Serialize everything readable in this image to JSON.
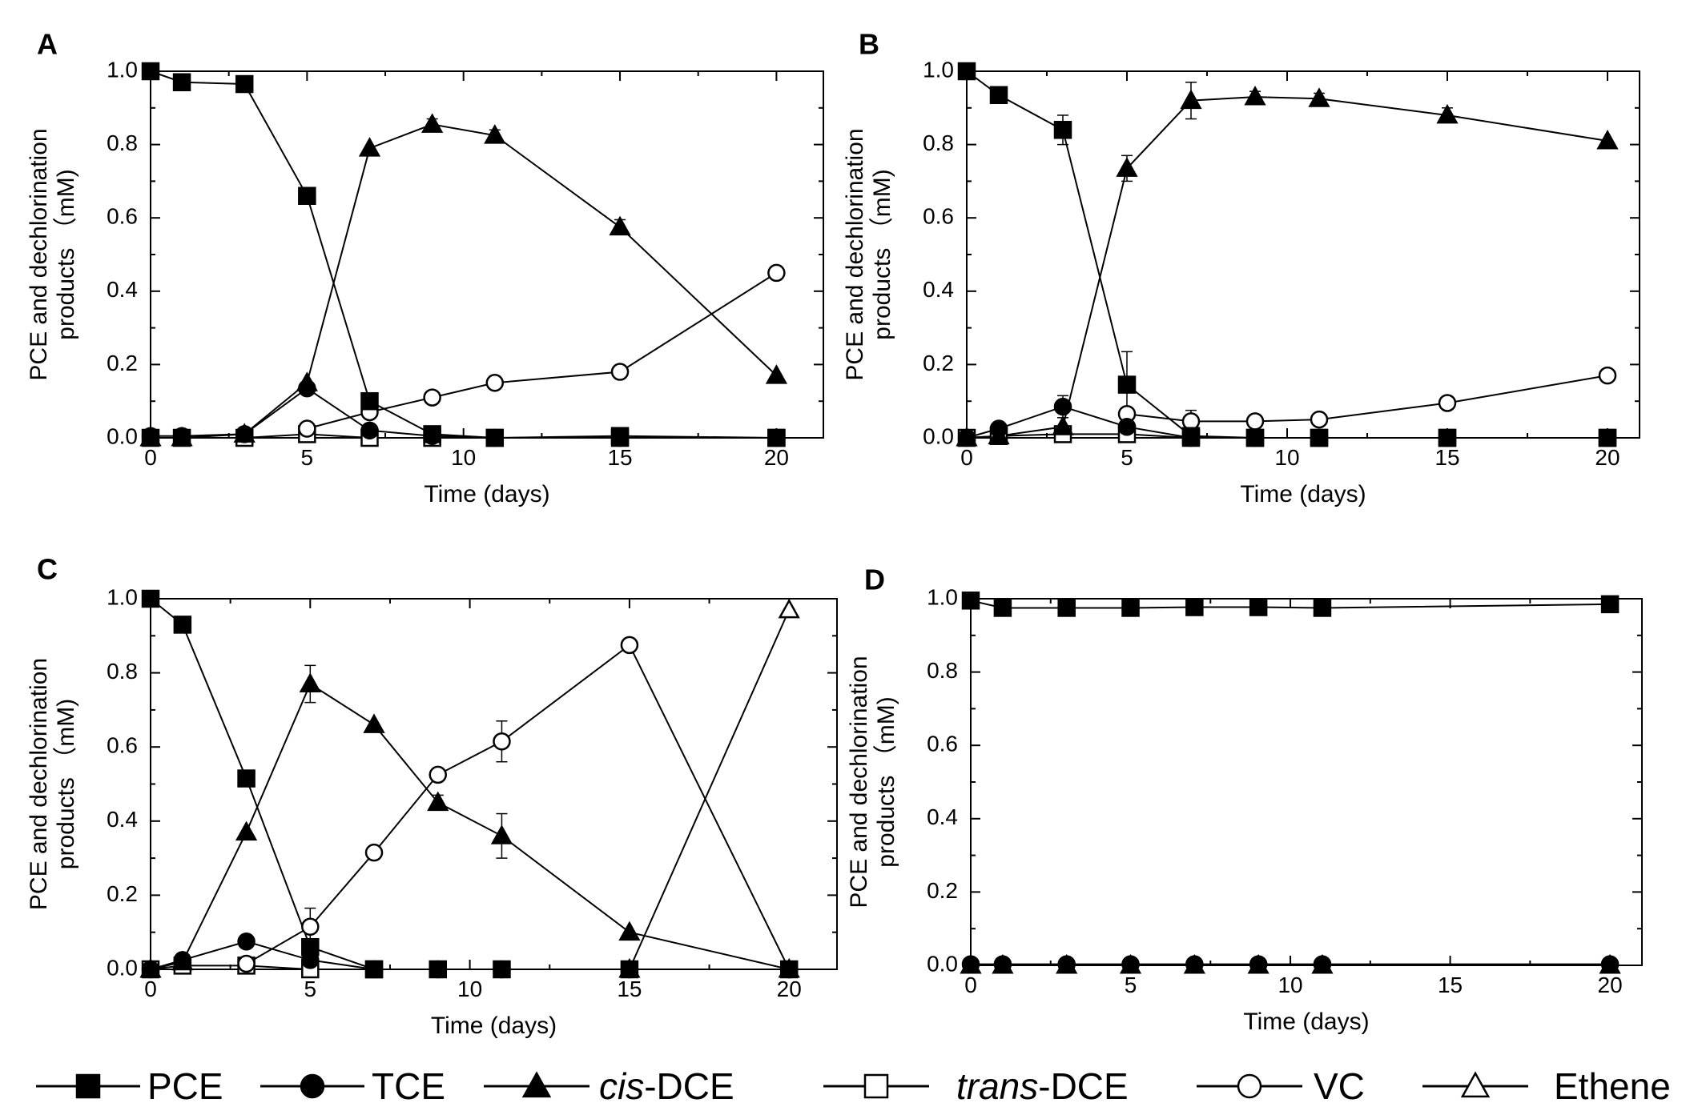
{
  "chart_data": [
    {
      "type": "line",
      "panel_label": "A",
      "xlabel": "Time (days)",
      "ylabel_line1": "PCE and dechlorination",
      "ylabel_line2": "products （mM)",
      "xlim": [
        0,
        21.5
      ],
      "ylim": [
        0,
        1.0
      ],
      "x_ticks": [
        0,
        5,
        10,
        15,
        20
      ],
      "x_tick_labels": [
        "0",
        "5",
        "10",
        "15",
        "20"
      ],
      "y_ticks": [
        0,
        0.2,
        0.4,
        0.6,
        0.8,
        1.0
      ],
      "y_tick_labels": [
        "0.0",
        "0.2",
        "0.4",
        "0.6",
        "0.8",
        "1.0"
      ],
      "series": [
        {
          "name": "PCE",
          "marker": "square-filled",
          "x": [
            0,
            1,
            3,
            5,
            7,
            9,
            11,
            15,
            20
          ],
          "y": [
            1.0,
            0.97,
            0.965,
            0.66,
            0.1,
            0.01,
            0.0,
            0.005,
            0.0
          ],
          "err": [
            0,
            0,
            0,
            0,
            0.01,
            0,
            0,
            0,
            0
          ]
        },
        {
          "name": "TCE",
          "marker": "circle-filled",
          "x": [
            0,
            1,
            3,
            5,
            7,
            9,
            11,
            15,
            20
          ],
          "y": [
            0.005,
            0.005,
            0.01,
            0.135,
            0.02,
            0.005,
            0.0,
            0.0,
            0.0
          ],
          "err": [
            0,
            0,
            0,
            0,
            0,
            0,
            0,
            0,
            0
          ]
        },
        {
          "name": "cis-DCE",
          "marker": "triangle-filled",
          "x": [
            0,
            1,
            3,
            5,
            7,
            9,
            11,
            15,
            20
          ],
          "y": [
            0.0,
            0.0,
            0.01,
            0.15,
            0.79,
            0.855,
            0.825,
            0.575,
            0.17
          ],
          "err": [
            0,
            0,
            0,
            0,
            0,
            0.015,
            0.015,
            0.02,
            0
          ]
        },
        {
          "name": "trans-DCE",
          "marker": "square-open",
          "x": [
            0,
            1,
            3,
            5,
            7,
            9,
            11,
            15,
            20
          ],
          "y": [
            0.0,
            0.0,
            0.0,
            0.01,
            0.0,
            0.0,
            0.0,
            0.0,
            0.0
          ],
          "err": [
            0,
            0,
            0,
            0,
            0,
            0,
            0,
            0,
            0
          ]
        },
        {
          "name": "VC",
          "marker": "circle-open",
          "x": [
            5,
            7,
            9,
            11,
            15,
            20
          ],
          "y": [
            0.025,
            0.07,
            0.11,
            0.15,
            0.18,
            0.45
          ],
          "err": [
            0,
            0.015,
            0.01,
            0.01,
            0.01,
            0
          ]
        }
      ]
    },
    {
      "type": "line",
      "panel_label": "B",
      "xlabel": "Time (days)",
      "ylabel_line1": "PCE and dechlorination",
      "ylabel_line2": "products （mM)",
      "xlim": [
        0,
        21
      ],
      "ylim": [
        0,
        1.0
      ],
      "x_ticks": [
        0,
        5,
        10,
        15,
        20
      ],
      "x_tick_labels": [
        "0",
        "5",
        "10",
        "15",
        "20"
      ],
      "y_ticks": [
        0,
        0.2,
        0.4,
        0.6,
        0.8,
        1.0
      ],
      "y_tick_labels": [
        "0.0",
        "0.2",
        "0.4",
        "0.6",
        "0.8",
        "1.0"
      ],
      "series": [
        {
          "name": "PCE",
          "marker": "square-filled",
          "x": [
            0,
            1,
            3,
            5,
            7,
            9,
            11,
            15,
            20
          ],
          "y": [
            1.0,
            0.935,
            0.84,
            0.145,
            0.005,
            0.0,
            0.0,
            0.0,
            0.0
          ],
          "err": [
            0,
            0,
            0.04,
            0.09,
            0,
            0,
            0,
            0,
            0
          ]
        },
        {
          "name": "TCE",
          "marker": "circle-filled",
          "x": [
            0,
            1,
            3,
            5,
            7,
            9,
            11,
            15,
            20
          ],
          "y": [
            0.0,
            0.025,
            0.085,
            0.03,
            0.0,
            0.0,
            0.0,
            0.0,
            0.0
          ],
          "err": [
            0,
            0,
            0.03,
            0,
            0,
            0,
            0,
            0,
            0
          ]
        },
        {
          "name": "cis-DCE",
          "marker": "triangle-filled",
          "x": [
            0,
            1,
            3,
            5,
            7,
            9,
            11,
            15,
            20
          ],
          "y": [
            0.0,
            0.005,
            0.03,
            0.735,
            0.92,
            0.93,
            0.925,
            0.88,
            0.81
          ],
          "err": [
            0,
            0,
            0,
            0.035,
            0.05,
            0.015,
            0.015,
            0.02,
            0
          ]
        },
        {
          "name": "trans-DCE",
          "marker": "square-open",
          "x": [
            0,
            1,
            3,
            5,
            7,
            9,
            11,
            15,
            20
          ],
          "y": [
            0.0,
            0.005,
            0.01,
            0.01,
            0.0,
            0.0,
            0.0,
            0.0,
            0.0
          ],
          "err": [
            0,
            0,
            0,
            0,
            0,
            0,
            0,
            0,
            0
          ]
        },
        {
          "name": "VC",
          "marker": "circle-open",
          "x": [
            5,
            7,
            9,
            11,
            15,
            20
          ],
          "y": [
            0.065,
            0.045,
            0.045,
            0.05,
            0.095,
            0.17
          ],
          "err": [
            0,
            0.03,
            0.01,
            0.01,
            0.01,
            0
          ]
        }
      ]
    },
    {
      "type": "line",
      "panel_label": "C",
      "xlabel": "Time (days)",
      "ylabel_line1": "PCE and dechlorination",
      "ylabel_line2": "products （mM)",
      "xlim": [
        0,
        21.5
      ],
      "ylim": [
        0,
        1.0
      ],
      "x_ticks": [
        0,
        5,
        10,
        15,
        20
      ],
      "x_tick_labels": [
        "0",
        "5",
        "10",
        "15",
        "20"
      ],
      "y_ticks": [
        0,
        0.2,
        0.4,
        0.6,
        0.8,
        1.0
      ],
      "y_tick_labels": [
        "0.0",
        "0.2",
        "0.4",
        "0.6",
        "0.8",
        "1.0"
      ],
      "series": [
        {
          "name": "PCE",
          "marker": "square-filled",
          "x": [
            0,
            1,
            3,
            5,
            7,
            9,
            11,
            15,
            20
          ],
          "y": [
            1.0,
            0.93,
            0.515,
            0.06,
            0.0,
            0.0,
            0.0,
            0.0,
            0.0
          ],
          "err": [
            0,
            0,
            0.02,
            0,
            0,
            0,
            0,
            0,
            0
          ]
        },
        {
          "name": "TCE",
          "marker": "circle-filled",
          "x": [
            0,
            1,
            3,
            5,
            7,
            9,
            11,
            15,
            20
          ],
          "y": [
            0.0,
            0.025,
            0.075,
            0.025,
            0.0,
            0.0,
            0.0,
            0.0,
            0.0
          ],
          "err": [
            0,
            0,
            0,
            0,
            0,
            0,
            0,
            0,
            0
          ]
        },
        {
          "name": "cis-DCE",
          "marker": "triangle-filled",
          "x": [
            0,
            1,
            3,
            5,
            7,
            9,
            11,
            15,
            20
          ],
          "y": [
            0.0,
            0.02,
            0.37,
            0.77,
            0.66,
            0.45,
            0.36,
            0.1,
            0.0
          ],
          "err": [
            0,
            0,
            0,
            0.05,
            0,
            0.02,
            0.06,
            0,
            0
          ]
        },
        {
          "name": "trans-DCE",
          "marker": "square-open",
          "x": [
            0,
            1,
            3,
            5,
            7
          ],
          "y": [
            0.0,
            0.01,
            0.01,
            0.0,
            0.0
          ],
          "err": [
            0,
            0,
            0,
            0,
            0
          ]
        },
        {
          "name": "VC",
          "marker": "circle-open",
          "x": [
            3,
            5,
            7,
            9,
            11,
            15,
            20
          ],
          "y": [
            0.015,
            0.115,
            0.315,
            0.525,
            0.615,
            0.875,
            0.0
          ],
          "err": [
            0,
            0.05,
            0.015,
            0.015,
            0.055,
            0,
            0
          ]
        },
        {
          "name": "Ethene",
          "marker": "triangle-open",
          "x": [
            15,
            20
          ],
          "y": [
            0.0,
            0.97
          ],
          "err": [
            0,
            0
          ]
        }
      ]
    },
    {
      "type": "line",
      "panel_label": "D",
      "xlabel": "Time (days)",
      "ylabel_line1": "PCE and dechlorination",
      "ylabel_line2": "products （mM)",
      "xlim": [
        0,
        21
      ],
      "ylim": [
        0,
        1.0
      ],
      "x_ticks": [
        0,
        5,
        10,
        15,
        20
      ],
      "x_tick_labels": [
        "0",
        "5",
        "10",
        "15",
        "20"
      ],
      "y_ticks": [
        0,
        0.2,
        0.4,
        0.6,
        0.8,
        1.0
      ],
      "y_tick_labels": [
        "0.0",
        "0.2",
        "0.4",
        "0.6",
        "0.8",
        "1.0"
      ],
      "series": [
        {
          "name": "PCE",
          "marker": "square-filled",
          "x": [
            0,
            1,
            3,
            5,
            7,
            9,
            11,
            20
          ],
          "y": [
            0.995,
            0.975,
            0.975,
            0.975,
            0.977,
            0.977,
            0.975,
            0.985
          ],
          "err": [
            0,
            0,
            0,
            0,
            0,
            0,
            0,
            0
          ]
        },
        {
          "name": "TCE",
          "marker": "circle-filled",
          "x": [
            0,
            1,
            3,
            5,
            7,
            9,
            11,
            20
          ],
          "y": [
            0.003,
            0.003,
            0.003,
            0.003,
            0.003,
            0.003,
            0.003,
            0.003
          ],
          "err": [
            0,
            0,
            0,
            0,
            0,
            0,
            0,
            0
          ]
        },
        {
          "name": "cis-DCE",
          "marker": "triangle-filled",
          "x": [
            0,
            1,
            3,
            5,
            7,
            9,
            11,
            20
          ],
          "y": [
            0.0,
            0.0,
            0.0,
            0.0,
            0.0,
            0.0,
            0.0,
            0.0
          ],
          "err": [
            0,
            0,
            0,
            0,
            0,
            0,
            0,
            0
          ]
        }
      ]
    }
  ],
  "legend": [
    {
      "name": "PCE",
      "marker": "square-filled",
      "label": "PCE"
    },
    {
      "name": "TCE",
      "marker": "circle-filled",
      "label": "TCE"
    },
    {
      "name": "cis-DCE",
      "marker": "triangle-filled",
      "label_italic": "cis",
      "label_rest": "-DCE"
    },
    {
      "name": "trans-DCE",
      "marker": "square-open",
      "label_italic": "trans",
      "label_rest": "-DCE"
    },
    {
      "name": "VC",
      "marker": "circle-open",
      "label": "VC"
    },
    {
      "name": "Ethene",
      "marker": "triangle-open",
      "label": "Ethene"
    }
  ]
}
